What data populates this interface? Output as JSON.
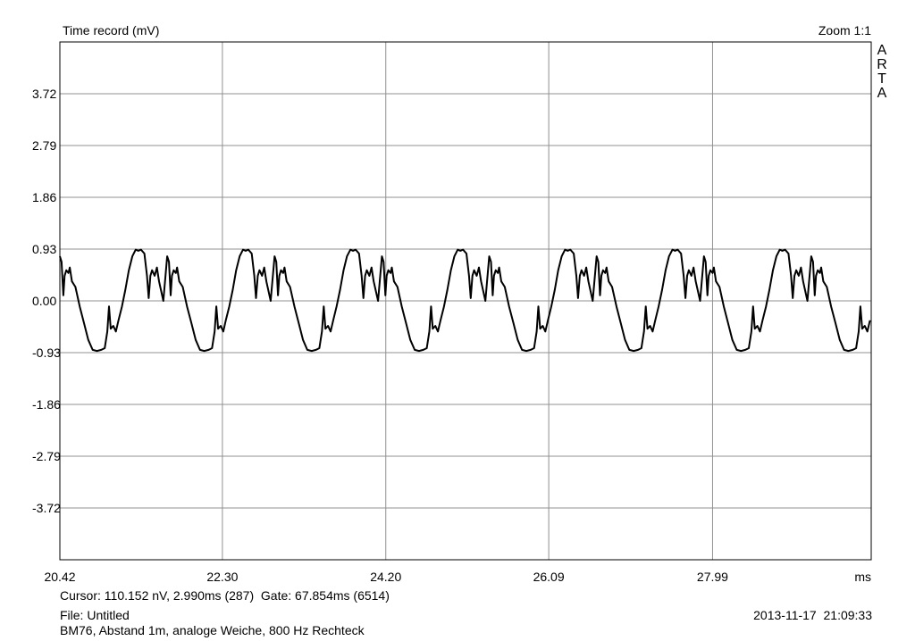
{
  "chart_data": {
    "type": "line",
    "title": "Time record (mV)",
    "zoom_label": "Zoom 1:1",
    "brand": [
      "A",
      "R",
      "T",
      "A"
    ],
    "xlabel": "ms",
    "xlim": [
      20.42,
      29.83
    ],
    "ylim": [
      -4.65,
      4.65
    ],
    "x_ticks": [
      "20.42",
      "22.30",
      "24.20",
      "26.09",
      "27.99"
    ],
    "x_tick_values": [
      20.42,
      22.305,
      24.2,
      26.09,
      27.99
    ],
    "y_ticks": [
      "3.72",
      "2.79",
      "1.86",
      "0.93",
      "0.00",
      "-0.93",
      "-1.86",
      "-2.79",
      "-3.72"
    ],
    "y_tick_values": [
      3.72,
      2.79,
      1.86,
      0.93,
      0.0,
      -0.93,
      -1.86,
      -2.79,
      -3.72
    ],
    "grid": true,
    "series": [
      {
        "period_ms": 1.245,
        "points": [
          [
            20.42,
            0.8
          ],
          [
            20.44,
            0.7
          ],
          [
            20.46,
            0.1
          ],
          [
            20.475,
            0.45
          ],
          [
            20.495,
            0.55
          ],
          [
            20.52,
            0.5
          ],
          [
            20.535,
            0.6
          ],
          [
            20.56,
            0.35
          ],
          [
            20.6,
            0.25
          ],
          [
            20.65,
            -0.1
          ],
          [
            20.7,
            -0.4
          ],
          [
            20.75,
            -0.7
          ],
          [
            20.8,
            -0.88
          ],
          [
            20.85,
            -0.9
          ],
          [
            20.9,
            -0.88
          ],
          [
            20.94,
            -0.85
          ],
          [
            20.97,
            -0.55
          ],
          [
            20.99,
            -0.1
          ],
          [
            21.01,
            -0.5
          ],
          [
            21.04,
            -0.45
          ],
          [
            21.07,
            -0.55
          ],
          [
            21.1,
            -0.35
          ],
          [
            21.14,
            -0.1
          ],
          [
            21.18,
            0.2
          ],
          [
            21.22,
            0.55
          ],
          [
            21.26,
            0.8
          ],
          [
            21.3,
            0.92
          ],
          [
            21.33,
            0.9
          ],
          [
            21.36,
            0.92
          ],
          [
            21.4,
            0.85
          ],
          [
            21.43,
            0.45
          ],
          [
            21.45,
            0.05
          ],
          [
            21.47,
            0.45
          ],
          [
            21.49,
            0.55
          ],
          [
            21.52,
            0.45
          ],
          [
            21.545,
            0.6
          ],
          [
            21.57,
            0.35
          ],
          [
            21.62,
            0.0
          ],
          [
            21.665,
            0.8
          ]
        ]
      }
    ]
  },
  "cursor_text": "Cursor: 110.152 nV, 2.990ms (287)  Gate: 67.854ms (6514)",
  "file_text": "File: Untitled",
  "description": "BM76, Abstand 1m, analoge Weiche, 800 Hz Rechteck",
  "timestamp": "2013-11-17  21:09:33"
}
